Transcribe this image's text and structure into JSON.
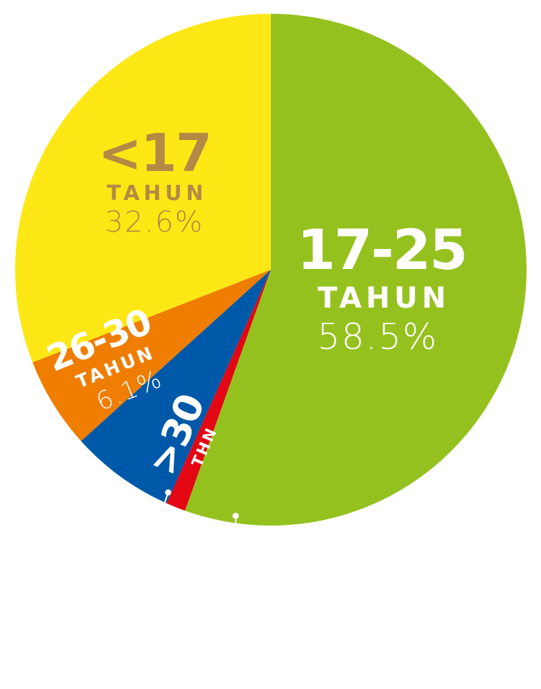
{
  "chart_data": {
    "type": "pie",
    "start_angle_deg": 0,
    "direction": "clockwise",
    "slices": [
      {
        "name": "17-25",
        "unit": "TAHUN",
        "value": 58.5,
        "value_label": "58.5%",
        "color": "#95c11f",
        "text_color": "#ffffff"
      },
      {
        "name": "",
        "unit": "",
        "value": 1.3,
        "value_label": "",
        "color": "#e30613",
        "text_color": "#ffffff"
      },
      {
        "name": ">30",
        "unit": "THN",
        "value": 7.0,
        "value_label": "",
        "color": "#0059a8",
        "text_color": "#ffffff"
      },
      {
        "name": "26-30",
        "unit": "TAHUN",
        "value": 6.1,
        "value_label": "6.1%",
        "color": "#ef7d00",
        "text_color": "#ffffff"
      },
      {
        "name": "<17",
        "unit": "TAHUN",
        "value": 32.6,
        "value_label": "32.6%",
        "color": "#fde715",
        "text_color": "#b38a45"
      }
    ]
  }
}
